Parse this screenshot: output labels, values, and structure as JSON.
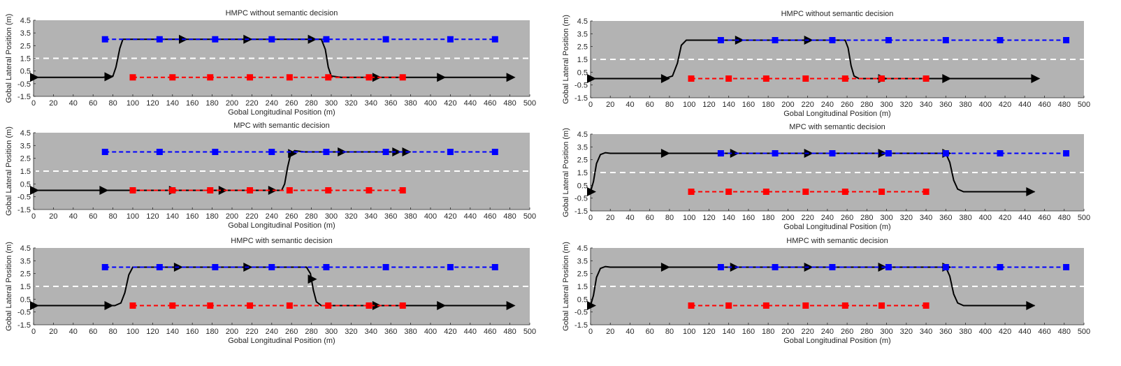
{
  "chart_data": [
    {
      "type": "line",
      "title": "HMPC without semantic decision",
      "xlabel": "Gobal Longitudinal Position (m)",
      "ylabel": "Gobal Lateral Position (m)",
      "xlim": [
        0,
        500
      ],
      "ylim": [
        -1.5,
        4.5
      ],
      "xticks": [
        "0",
        "20",
        "40",
        "60",
        "80",
        "100",
        "120",
        "140",
        "160",
        "180",
        "200",
        "220",
        "240",
        "260",
        "280",
        "300",
        "320",
        "340",
        "360",
        "380",
        "400",
        "420",
        "440",
        "460",
        "480",
        "500"
      ],
      "yticks": [
        "-1.5",
        "-0.5",
        "0.5",
        "1.5",
        "2.5",
        "3.5",
        "4.5"
      ],
      "grid": false,
      "lane_divider_y": 1.5,
      "series": [
        {
          "role": "ego",
          "color": "#000000",
          "x": [
            0,
            70,
            80,
            83,
            87,
            90,
            100,
            200,
            290,
            294,
            297,
            300,
            310,
            480
          ],
          "y": [
            0,
            0,
            0.1,
            0.8,
            2.3,
            3,
            3,
            3,
            3,
            2.2,
            0.8,
            0.1,
            0,
            0
          ],
          "arrows_x": [
            0,
            75,
            150,
            215,
            280,
            345,
            410,
            480
          ]
        },
        {
          "role": "blue",
          "color": "#0000ff",
          "x": [
            72,
            127,
            183,
            240,
            295,
            355,
            420,
            465
          ],
          "y": [
            3,
            3,
            3,
            3,
            3,
            3,
            3,
            3
          ]
        },
        {
          "role": "red",
          "color": "#ff0000",
          "x": [
            100,
            140,
            178,
            218,
            258,
            297,
            338,
            372
          ],
          "y": [
            0,
            0,
            0,
            0,
            0,
            0,
            0,
            0
          ]
        }
      ]
    },
    {
      "type": "line",
      "title": "MPC with semantic decision",
      "xlabel": "Gobal Longitudinal Position (m)",
      "ylabel": "Gobal Lateral Position (m)",
      "xlim": [
        0,
        500
      ],
      "ylim": [
        -1.5,
        4.5
      ],
      "xticks": [
        "0",
        "20",
        "40",
        "60",
        "80",
        "100",
        "120",
        "140",
        "160",
        "180",
        "200",
        "220",
        "240",
        "260",
        "280",
        "300",
        "320",
        "340",
        "360",
        "380",
        "400",
        "420",
        "440",
        "460",
        "480",
        "500"
      ],
      "yticks": [
        "-1.5",
        "-0.5",
        "0.5",
        "1.5",
        "2.5",
        "3.5",
        "4.5"
      ],
      "grid": false,
      "lane_divider_y": 1.5,
      "series": [
        {
          "role": "ego",
          "color": "#000000",
          "x": [
            0,
            250,
            253,
            256,
            259,
            263,
            268,
            273,
            300,
            375
          ],
          "y": [
            0,
            0,
            0.5,
            1.8,
            2.8,
            3.1,
            3.05,
            3,
            3,
            3
          ],
          "arrows_x": [
            0,
            70,
            140,
            190,
            240,
            260,
            310,
            365,
            375
          ]
        },
        {
          "role": "blue",
          "color": "#0000ff",
          "x": [
            72,
            127,
            183,
            240,
            295,
            355,
            420,
            465
          ],
          "y": [
            3,
            3,
            3,
            3,
            3,
            3,
            3,
            3
          ]
        },
        {
          "role": "red",
          "color": "#ff0000",
          "x": [
            100,
            140,
            178,
            218,
            258,
            297,
            338,
            372
          ],
          "y": [
            0,
            0,
            0,
            0,
            0,
            0,
            0,
            0
          ]
        }
      ]
    },
    {
      "type": "line",
      "title": "HMPC with semantic decision",
      "xlabel": "Gobal Longitudinal Position (m)",
      "ylabel": "Gobal Lateral Position (m)",
      "xlim": [
        0,
        500
      ],
      "ylim": [
        -1.5,
        4.5
      ],
      "xticks": [
        "0",
        "20",
        "40",
        "60",
        "80",
        "100",
        "120",
        "140",
        "160",
        "180",
        "200",
        "220",
        "240",
        "260",
        "280",
        "300",
        "320",
        "340",
        "360",
        "380",
        "400",
        "420",
        "440",
        "460",
        "480",
        "500"
      ],
      "yticks": [
        "-1.5",
        "-0.5",
        "0.5",
        "1.5",
        "2.5",
        "3.5",
        "4.5"
      ],
      "grid": false,
      "lane_divider_y": 1.5,
      "series": [
        {
          "role": "ego",
          "color": "#000000",
          "x": [
            0,
            82,
            88,
            92,
            96,
            100,
            200,
            275,
            279,
            282,
            285,
            290,
            300,
            480
          ],
          "y": [
            0,
            0,
            0.2,
            1,
            2.4,
            3,
            3,
            3,
            2.5,
            1.2,
            0.3,
            0,
            0,
            0
          ],
          "arrows_x": [
            0,
            75,
            145,
            215,
            280,
            345,
            410,
            480
          ]
        },
        {
          "role": "blue",
          "color": "#0000ff",
          "x": [
            72,
            127,
            183,
            240,
            295,
            355,
            420,
            465
          ],
          "y": [
            3,
            3,
            3,
            3,
            3,
            3,
            3,
            3
          ]
        },
        {
          "role": "red",
          "color": "#ff0000",
          "x": [
            100,
            140,
            178,
            218,
            258,
            297,
            338,
            372
          ],
          "y": [
            0,
            0,
            0,
            0,
            0,
            0,
            0,
            0
          ]
        }
      ]
    },
    {
      "type": "line",
      "title": "HMPC without semantic decision",
      "xlabel": "Gobal Longitudinal Position (m)",
      "ylabel": "Gobal Lateral Position (m)",
      "xlim": [
        0,
        500
      ],
      "ylim": [
        -1.5,
        4.5
      ],
      "xticks": [
        "0",
        "20",
        "40",
        "60",
        "80",
        "100",
        "120",
        "140",
        "160",
        "180",
        "200",
        "220",
        "240",
        "260",
        "280",
        "300",
        "320",
        "340",
        "360",
        "380",
        "400",
        "420",
        "440",
        "460",
        "480",
        "500"
      ],
      "yticks": [
        "-1.5",
        "-0.5",
        "0.5",
        "1.5",
        "2.5",
        "3.5",
        "4.5"
      ],
      "grid": false,
      "lane_divider_y": 1.5,
      "series": [
        {
          "role": "ego",
          "color": "#000000",
          "x": [
            0,
            75,
            83,
            88,
            92,
            97,
            100,
            200,
            258,
            261,
            264,
            267,
            272,
            280,
            450
          ],
          "y": [
            0,
            0,
            0.2,
            1.2,
            2.6,
            3,
            3,
            3,
            3,
            2.4,
            1,
            0.2,
            0,
            0,
            0
          ],
          "arrows_x": [
            0,
            75,
            150,
            220,
            295,
            360,
            450
          ]
        },
        {
          "role": "blue",
          "color": "#0000ff",
          "x": [
            132,
            187,
            245,
            302,
            360,
            415,
            482
          ],
          "y": [
            3,
            3,
            3,
            3,
            3,
            3,
            3
          ]
        },
        {
          "role": "red",
          "color": "#ff0000",
          "x": [
            102,
            140,
            178,
            218,
            258,
            295,
            340
          ],
          "y": [
            0,
            0,
            0,
            0,
            0,
            0,
            0
          ]
        }
      ]
    },
    {
      "type": "line",
      "title": "MPC with semantic decision",
      "xlabel": "Gobal Longitudinal Position (m)",
      "ylabel": "Gobal Lateral Position (m)",
      "xlim": [
        0,
        500
      ],
      "ylim": [
        -1.5,
        4.5
      ],
      "xticks": [
        "0",
        "20",
        "40",
        "60",
        "80",
        "100",
        "120",
        "140",
        "160",
        "180",
        "200",
        "220",
        "240",
        "260",
        "280",
        "300",
        "320",
        "340",
        "360",
        "380",
        "400",
        "420",
        "440",
        "460",
        "480",
        "500"
      ],
      "yticks": [
        "-1.5",
        "-0.5",
        "0.5",
        "1.5",
        "2.5",
        "3.5",
        "4.5"
      ],
      "grid": false,
      "lane_divider_y": 1.5,
      "series": [
        {
          "role": "ego",
          "color": "#000000",
          "x": [
            0,
            3,
            6,
            10,
            15,
            20,
            100,
            200,
            360,
            364,
            368,
            372,
            378,
            385,
            450
          ],
          "y": [
            0,
            0.8,
            2.2,
            2.9,
            3.05,
            3,
            3,
            3,
            3,
            2.3,
            0.9,
            0.2,
            0,
            0,
            0
          ],
          "arrows_x": [
            0,
            75,
            145,
            220,
            295,
            360,
            445
          ]
        },
        {
          "role": "blue",
          "color": "#0000ff",
          "x": [
            132,
            187,
            245,
            302,
            360,
            415,
            482
          ],
          "y": [
            3,
            3,
            3,
            3,
            3,
            3,
            3
          ]
        },
        {
          "role": "red",
          "color": "#ff0000",
          "x": [
            102,
            140,
            178,
            218,
            258,
            295,
            340
          ],
          "y": [
            0,
            0,
            0,
            0,
            0,
            0,
            0
          ]
        }
      ]
    },
    {
      "type": "line",
      "title": "HMPC with semantic decision",
      "xlabel": "Gobal Longitudinal Position (m)",
      "ylabel": "Gobal Lateral Position (m)",
      "xlim": [
        0,
        500
      ],
      "ylim": [
        -1.5,
        4.5
      ],
      "xticks": [
        "0",
        "20",
        "40",
        "60",
        "80",
        "100",
        "120",
        "140",
        "160",
        "180",
        "200",
        "220",
        "240",
        "260",
        "280",
        "300",
        "320",
        "340",
        "360",
        "380",
        "400",
        "420",
        "440",
        "460",
        "480",
        "500"
      ],
      "yticks": [
        "-1.5",
        "-0.5",
        "0.5",
        "1.5",
        "2.5",
        "3.5",
        "4.5"
      ],
      "grid": false,
      "lane_divider_y": 1.5,
      "series": [
        {
          "role": "ego",
          "color": "#000000",
          "x": [
            0,
            3,
            6,
            10,
            15,
            20,
            100,
            200,
            360,
            364,
            368,
            372,
            378,
            385,
            450
          ],
          "y": [
            0,
            0.8,
            2.2,
            2.9,
            3.05,
            3,
            3,
            3,
            3,
            2.3,
            0.9,
            0.2,
            0,
            0,
            0
          ],
          "arrows_x": [
            0,
            75,
            145,
            220,
            295,
            360,
            445
          ]
        },
        {
          "role": "blue",
          "color": "#0000ff",
          "x": [
            132,
            187,
            245,
            302,
            360,
            415,
            482
          ],
          "y": [
            3,
            3,
            3,
            3,
            3,
            3,
            3
          ]
        },
        {
          "role": "red",
          "color": "#ff0000",
          "x": [
            102,
            140,
            178,
            218,
            258,
            295,
            340
          ],
          "y": [
            0,
            0,
            0,
            0,
            0,
            0,
            0
          ]
        }
      ]
    }
  ]
}
